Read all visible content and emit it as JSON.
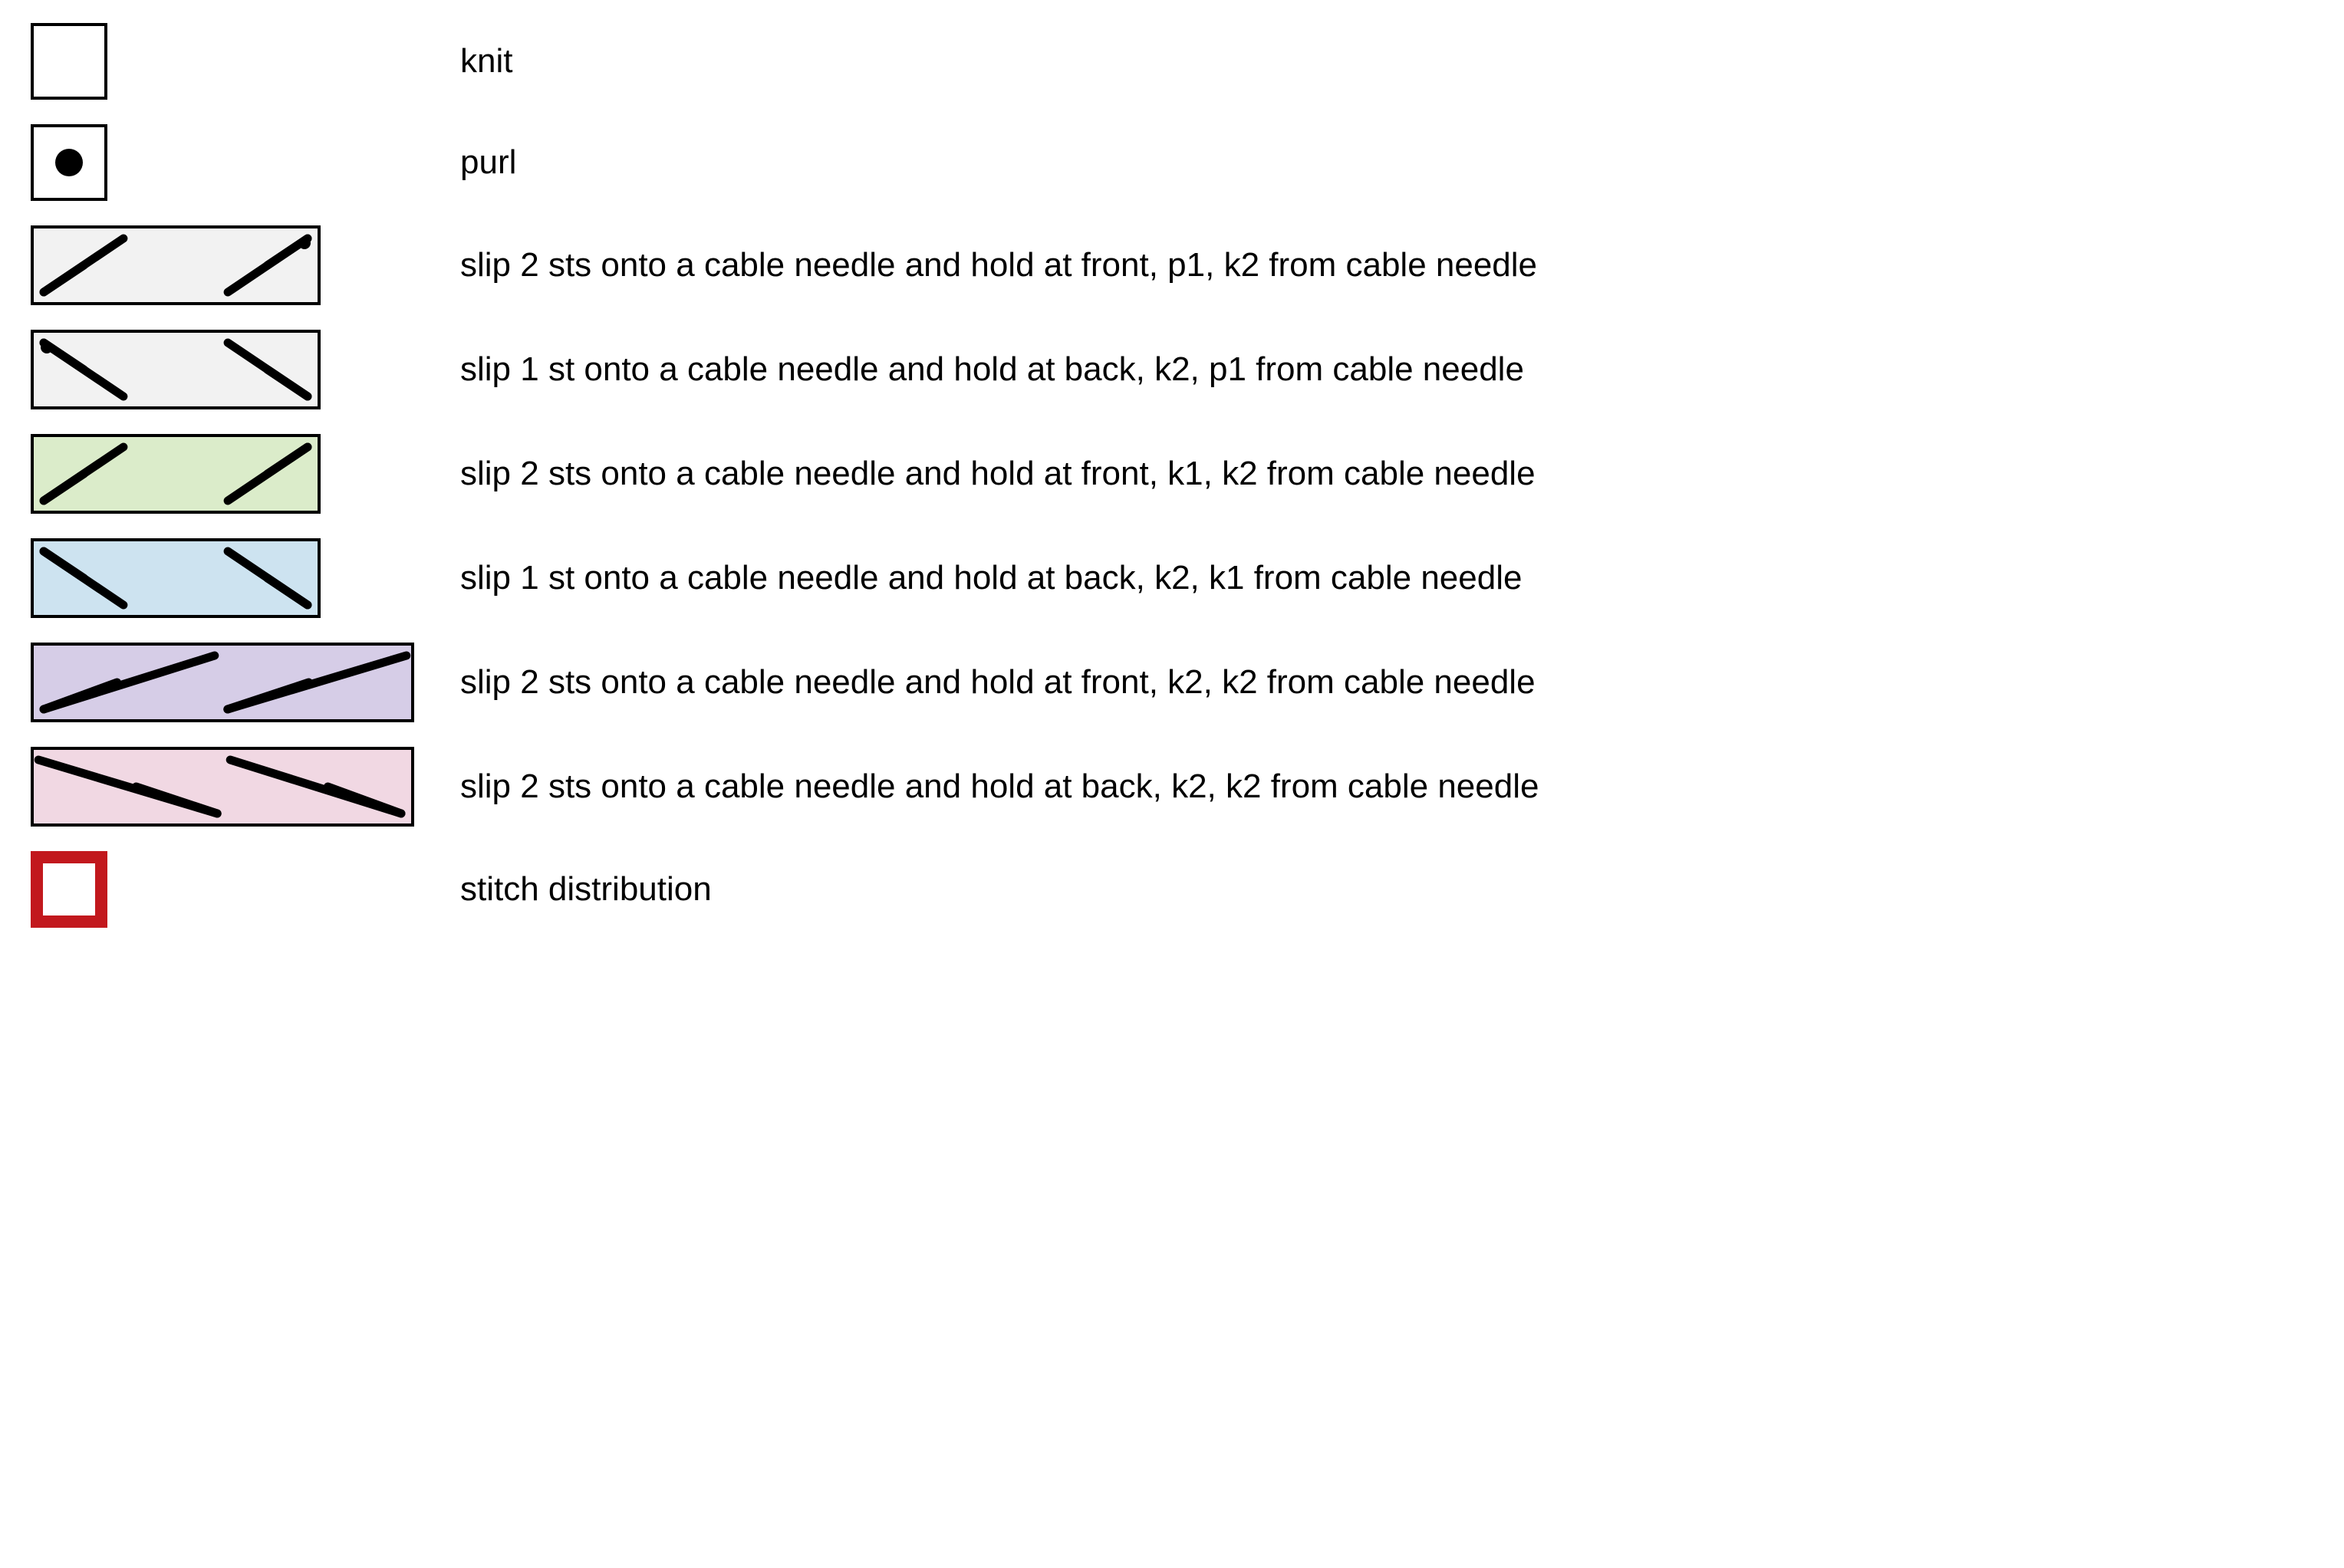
{
  "colors": {
    "stroke": "#000000",
    "white": "#ffffff",
    "grey1": "#f2f2f2",
    "grey2": "#f2f2f2",
    "green": "#dbecca",
    "blue": "#cde3f0",
    "purple": "#d6cde7",
    "pink": "#f1d8e3",
    "red": "#c2181d"
  },
  "sizes": {
    "square": 100,
    "wide3_w": 378,
    "wide3_h": 104,
    "wide4_w": 500,
    "wide4_h": 104,
    "stroke_thin": 4,
    "stroke_line": 11,
    "stroke_red": 16,
    "dot_r": 18,
    "dot_small_r": 8,
    "font_size": 44
  },
  "rows": [
    {
      "id": "knit",
      "symbol": "knit",
      "label": "knit"
    },
    {
      "id": "purl",
      "symbol": "purl",
      "label": "purl"
    },
    {
      "id": "c3f-p",
      "symbol": "cable3_front_p",
      "label": "slip 2 sts onto a cable needle and hold at front, p1, k2 from cable needle"
    },
    {
      "id": "c3b-p",
      "symbol": "cable3_back_p",
      "label": "slip 1 st onto a cable needle and hold at back, k2, p1 from cable needle"
    },
    {
      "id": "c3f-k",
      "symbol": "cable3_front_k",
      "label": "slip 2 sts onto a cable needle and hold at front, k1, k2 from cable needle"
    },
    {
      "id": "c3b-k",
      "symbol": "cable3_back_k",
      "label": "slip 1 st onto a cable needle and hold at back, k2, k1 from cable needle"
    },
    {
      "id": "c4f",
      "symbol": "cable4_front",
      "label": "slip 2 sts onto a cable needle and hold at front, k2, k2 from cable needle"
    },
    {
      "id": "c4b",
      "symbol": "cable4_back",
      "label": "slip 2 sts onto a cable needle and hold at back, k2, k2 from cable needle"
    },
    {
      "id": "dist",
      "symbol": "distribution",
      "label": "stitch distribution"
    }
  ]
}
